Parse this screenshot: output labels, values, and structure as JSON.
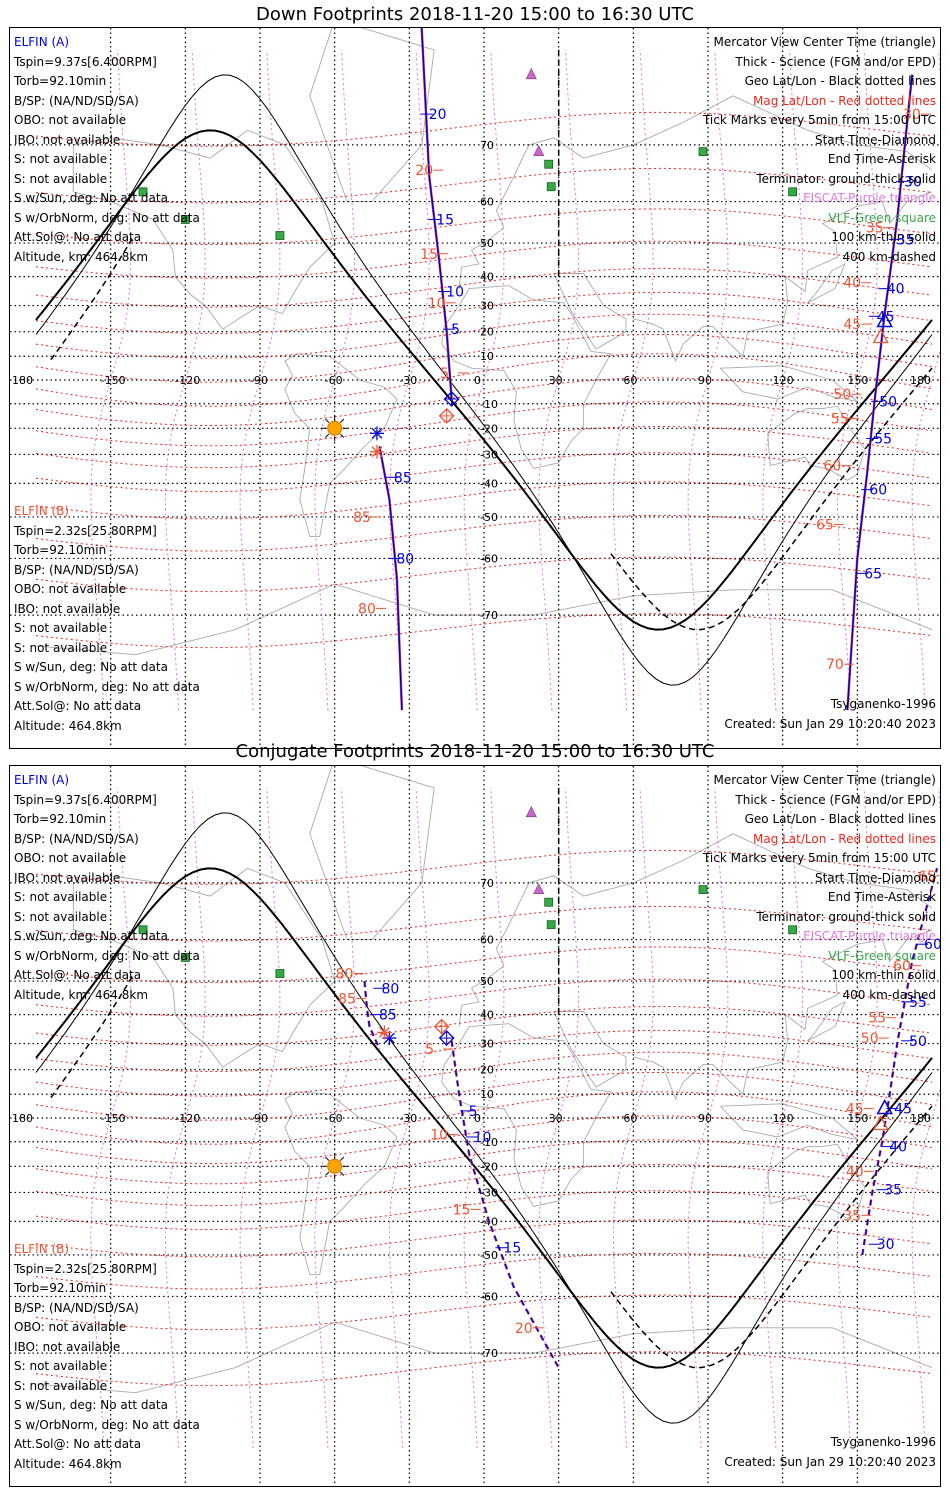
{
  "panels": [
    {
      "title": "Down Footprints 2018-11-20 15:00 to 16:30 UTC",
      "mode": "down",
      "elfin_a": {
        "name": "ELFIN (A)",
        "lines": [
          "Tspin=9.37s[6.400RPM]",
          "Torb=92.10min",
          "B/SP: (NA/ND/SD/SA)",
          "OBO: not available",
          "IBO: not available",
          "S: not available",
          "S: not available",
          "S w/Sun, deg: No att data",
          "S w/OrbNorm, deg: No att data",
          "Att.Sol@: No att data",
          "Altitude, km: 464.8km"
        ]
      },
      "elfin_b": {
        "name": "ELFIN (B)",
        "lines": [
          "Tspin=2.32s[25.80RPM]",
          "Torb=92.10min",
          "B/SP: (NA/ND/SD/SA)",
          "OBO: not available",
          "IBO: not available",
          "S: not available",
          "S: not available",
          "S w/Sun, deg: No att data",
          "S w/OrbNorm, deg: No att data",
          "Att.Sol@: No att data",
          "Altitude: 464.8km"
        ]
      },
      "legend": [
        {
          "text": "Mercator View Center Time (triangle)",
          "color": "#000000"
        },
        {
          "text": "Thick - Science (FGM and/or EPD)",
          "color": "#000000"
        },
        {
          "text": "Geo Lat/Lon - Black dotted lines",
          "color": "#000000"
        },
        {
          "text": "Mag Lat/Lon - Red dotted lines",
          "color": "#e8281e"
        },
        {
          "text": "Tick Marks every 5min from 15:00 UTC",
          "color": "#000000"
        },
        {
          "text": "Start Time-Diamond",
          "color": "#000000"
        },
        {
          "text": "End Time-Asterisk",
          "color": "#000000"
        },
        {
          "text": "Terminator: ground-thick solid",
          "color": "#000000"
        },
        {
          "text": "EISCAT-Purple triangle",
          "color": "#e07be0"
        },
        {
          "text": "VLF-Green square",
          "color": "#3aa64a"
        },
        {
          "text": "100 km-thin solid",
          "color": "#000000"
        },
        {
          "text": "400 km-dashed",
          "color": "#000000"
        }
      ],
      "model": "Tsyganenko-1996",
      "created": "Created: Sun Jan 29 10:20:40 2023"
    },
    {
      "title": "Conjugate Footprints 2018-11-20 15:00 to 16:30 UTC",
      "mode": "conj",
      "elfin_a": {
        "name": "ELFIN (A)",
        "lines": [
          "Tspin=9.37s[6.400RPM]",
          "Torb=92.10min",
          "B/SP: (NA/ND/SD/SA)",
          "OBO: not available",
          "IBO: not available",
          "S: not available",
          "S: not available",
          "S w/Sun, deg: No att data",
          "S w/OrbNorm, deg: No att data",
          "Att.Sol@: No att data",
          "Altitude, km: 464.8km"
        ]
      },
      "elfin_b": {
        "name": "ELFIN (B)",
        "lines": [
          "Tspin=2.32s[25.80RPM]",
          "Torb=92.10min",
          "B/SP: (NA/ND/SD/SA)",
          "OBO: not available",
          "IBO: not available",
          "S: not available",
          "S: not available",
          "S w/Sun, deg: No att data",
          "S w/OrbNorm, deg: No att data",
          "Att.Sol@: No att data",
          "Altitude: 464.8km"
        ]
      },
      "legend": [
        {
          "text": "Mercator View Center Time (triangle)",
          "color": "#000000"
        },
        {
          "text": "Thick - Science (FGM and/or EPD)",
          "color": "#000000"
        },
        {
          "text": "Geo Lat/Lon - Black dotted lines",
          "color": "#000000"
        },
        {
          "text": "Mag Lat/Lon - Red dotted lines",
          "color": "#e8281e"
        },
        {
          "text": "Tick Marks every 5min from 15:00 UTC",
          "color": "#000000"
        },
        {
          "text": "Start Time-Diamond",
          "color": "#000000"
        },
        {
          "text": "End Time-Asterisk",
          "color": "#000000"
        },
        {
          "text": "Terminator: ground-thick solid",
          "color": "#000000"
        },
        {
          "text": "EISCAT-Purple triangle",
          "color": "#e07be0"
        },
        {
          "text": "VLF-Green square",
          "color": "#3aa64a"
        },
        {
          "text": "100 km-thin solid",
          "color": "#000000"
        },
        {
          "text": "400 km-dashed",
          "color": "#000000"
        }
      ],
      "model": "Tsyganenko-1996",
      "created": "Created: Sun Jan 29 10:20:40 2023"
    }
  ],
  "map": {
    "lon_range": [
      -180,
      180
    ],
    "lat_range": [
      -80,
      80
    ],
    "lon_ticks": [
      "180",
      "-150",
      "-120",
      "-90",
      "-60",
      "-30",
      "0",
      "30",
      "60",
      "90",
      "120",
      "150",
      "180"
    ],
    "lat_ticks": [
      "70",
      "60",
      "50",
      "40",
      "30",
      "20",
      "10",
      "0",
      "-10",
      "-20",
      "-30",
      "-40",
      "-50",
      "-60",
      "-70"
    ],
    "colors": {
      "elfin_a": "#0000dd",
      "elfin_b": "#ee5533",
      "mag_grid": "#ee2222",
      "geo_grid": "#000000",
      "eiscat": "#cc66cc",
      "vlf": "#33aa44",
      "sun": "#ffa500",
      "coast": "#aaaaaa"
    },
    "sun": {
      "lon": -60,
      "lat": -20
    },
    "eiscat_sites": [
      {
        "lon": 19,
        "lat": 78
      },
      {
        "lon": 22,
        "lat": 69
      }
    ],
    "vlf_sites": [
      {
        "lon": -137,
        "lat": 62
      },
      {
        "lon": -120,
        "lat": 56
      },
      {
        "lon": -82,
        "lat": 52
      },
      {
        "lon": 26,
        "lat": 67
      },
      {
        "lon": 27,
        "lat": 63
      },
      {
        "lon": 88,
        "lat": 69
      },
      {
        "lon": 124,
        "lat": 62
      }
    ],
    "down": {
      "sat_a": [
        {
          "lon": -26,
          "lat": 84
        },
        {
          "lon": -22,
          "lat": 65
        },
        {
          "lon": -18,
          "lat": 45
        },
        {
          "lon": -15,
          "lat": 20
        },
        {
          "lon": -13,
          "lat": -8
        }
      ],
      "sat_a_labels": [
        {
          "lon": -23,
          "lat": 74,
          "t": "20"
        },
        {
          "lon": -20,
          "lat": 56,
          "t": "15"
        },
        {
          "lon": -16,
          "lat": 35,
          "t": "10"
        },
        {
          "lon": -14,
          "lat": 21,
          "t": "5"
        },
        {
          "lon": 157,
          "lat": 26,
          "t": "45"
        },
        {
          "lon": 161,
          "lat": 36,
          "t": "40"
        },
        {
          "lon": 165,
          "lat": 51,
          "t": "35"
        },
        {
          "lon": 168,
          "lat": 64,
          "t": "30"
        },
        {
          "lon": 158,
          "lat": -9,
          "t": "50"
        },
        {
          "lon": 156,
          "lat": -24,
          "t": "55"
        },
        {
          "lon": 154,
          "lat": -42,
          "t": "60"
        },
        {
          "lon": 152,
          "lat": -63,
          "t": "65"
        },
        {
          "lon": -37,
          "lat": -38,
          "t": "85"
        },
        {
          "lon": -36,
          "lat": -60,
          "t": "80"
        }
      ],
      "sat_a2": [
        {
          "lon": 146,
          "lat": -80
        },
        {
          "lon": 150,
          "lat": -60
        },
        {
          "lon": 154,
          "lat": -36
        },
        {
          "lon": 157,
          "lat": -8
        },
        {
          "lon": 161,
          "lat": 27
        },
        {
          "lon": 166,
          "lat": 56
        },
        {
          "lon": 172,
          "lat": 78
        }
      ],
      "sat_a3": [
        {
          "lon": -42,
          "lat": -27
        },
        {
          "lon": -38,
          "lat": -45
        },
        {
          "lon": -35,
          "lat": -64
        },
        {
          "lon": -33,
          "lat": -80
        }
      ],
      "sat_b_labels": [
        {
          "lon": -26,
          "lat": 66,
          "t": "20"
        },
        {
          "lon": -24,
          "lat": 47,
          "t": "15"
        },
        {
          "lon": -21,
          "lat": 31,
          "t": "10"
        },
        {
          "lon": -16,
          "lat": 3,
          "t": "5"
        },
        {
          "lon": 146,
          "lat": 23,
          "t": "45"
        },
        {
          "lon": 146,
          "lat": 38,
          "t": "40"
        },
        {
          "lon": 155,
          "lat": 54,
          "t": "35"
        },
        {
          "lon": 170,
          "lat": 74,
          "t": "30"
        },
        {
          "lon": 142,
          "lat": -6,
          "t": "50"
        },
        {
          "lon": 141,
          "lat": -16,
          "t": "55"
        },
        {
          "lon": 138,
          "lat": -34,
          "t": "60"
        },
        {
          "lon": 135,
          "lat": -52,
          "t": "65"
        },
        {
          "lon": 139,
          "lat": -76,
          "t": "70"
        },
        {
          "lon": -51,
          "lat": -50,
          "t": "85"
        },
        {
          "lon": -49,
          "lat": -69,
          "t": "80"
        }
      ],
      "start_a": {
        "lon": -13,
        "lat": -8
      },
      "start_b": {
        "lon": -15,
        "lat": -15
      },
      "end_a": {
        "lon": -43,
        "lat": -22
      },
      "end_b": {
        "lon": -43,
        "lat": -29
      },
      "view_tri": {
        "lon": 161,
        "lat": 24
      }
    },
    "conj": {
      "sat_a": [
        {
          "lon": -13,
          "lat": 31
        },
        {
          "lon": -10,
          "lat": 10
        },
        {
          "lon": -6,
          "lat": -15
        },
        {
          "lon": 2,
          "lat": -40
        },
        {
          "lon": 12,
          "lat": -58
        },
        {
          "lon": 30,
          "lat": -72
        }
      ],
      "sat_a2": [
        {
          "lon": 152,
          "lat": -50
        },
        {
          "lon": 156,
          "lat": -30
        },
        {
          "lon": 160,
          "lat": -10
        },
        {
          "lon": 163,
          "lat": 10
        },
        {
          "lon": 166,
          "lat": 30
        },
        {
          "lon": 172,
          "lat": 55
        },
        {
          "lon": 182,
          "lat": 72
        }
      ],
      "sat_a3": [
        {
          "lon": -48,
          "lat": 50
        },
        {
          "lon": -47,
          "lat": 42
        },
        {
          "lon": -46,
          "lat": 36
        },
        {
          "lon": -42,
          "lat": 28
        }
      ],
      "sat_a_labels": [
        {
          "lon": -7,
          "lat": 3,
          "t": "5"
        },
        {
          "lon": -5,
          "lat": -8,
          "t": "10"
        },
        {
          "lon": 7,
          "lat": -48,
          "t": "15"
        },
        {
          "lon": 157,
          "lat": -47,
          "t": "30"
        },
        {
          "lon": 160,
          "lat": -29,
          "t": "35"
        },
        {
          "lon": 162,
          "lat": -12,
          "t": "40"
        },
        {
          "lon": 164,
          "lat": 4,
          "t": "45"
        },
        {
          "lon": 170,
          "lat": 31,
          "t": "50"
        },
        {
          "lon": 170,
          "lat": 44,
          "t": "55"
        },
        {
          "lon": 176,
          "lat": 59,
          "t": "60"
        },
        {
          "lon": -42,
          "lat": 48,
          "t": "80"
        },
        {
          "lon": -43,
          "lat": 40,
          "t": "85"
        }
      ],
      "sat_b_labels": [
        {
          "lon": -22,
          "lat": 28,
          "t": "5"
        },
        {
          "lon": -20,
          "lat": -7,
          "t": "10"
        },
        {
          "lon": -11,
          "lat": -36,
          "t": "15"
        },
        {
          "lon": 14,
          "lat": -66,
          "t": "20"
        },
        {
          "lon": 146,
          "lat": -38,
          "t": "35"
        },
        {
          "lon": 147,
          "lat": -22,
          "t": "40"
        },
        {
          "lon": 147,
          "lat": 4,
          "t": "45"
        },
        {
          "lon": 153,
          "lat": 32,
          "t": "50"
        },
        {
          "lon": 156,
          "lat": 39,
          "t": "55"
        },
        {
          "lon": 166,
          "lat": 54,
          "t": "60"
        },
        {
          "lon": 176,
          "lat": 71,
          "t": "65"
        },
        {
          "lon": -58,
          "lat": 52,
          "t": "80"
        },
        {
          "lon": -57,
          "lat": 45,
          "t": "85"
        }
      ],
      "start_a": {
        "lon": -15,
        "lat": 32
      },
      "start_b": {
        "lon": -17,
        "lat": 36
      },
      "end_a": {
        "lon": -38,
        "lat": 32
      },
      "end_b": {
        "lon": -40,
        "lat": 34
      },
      "view_tri": {
        "lon": 161,
        "lat": 4
      }
    }
  }
}
